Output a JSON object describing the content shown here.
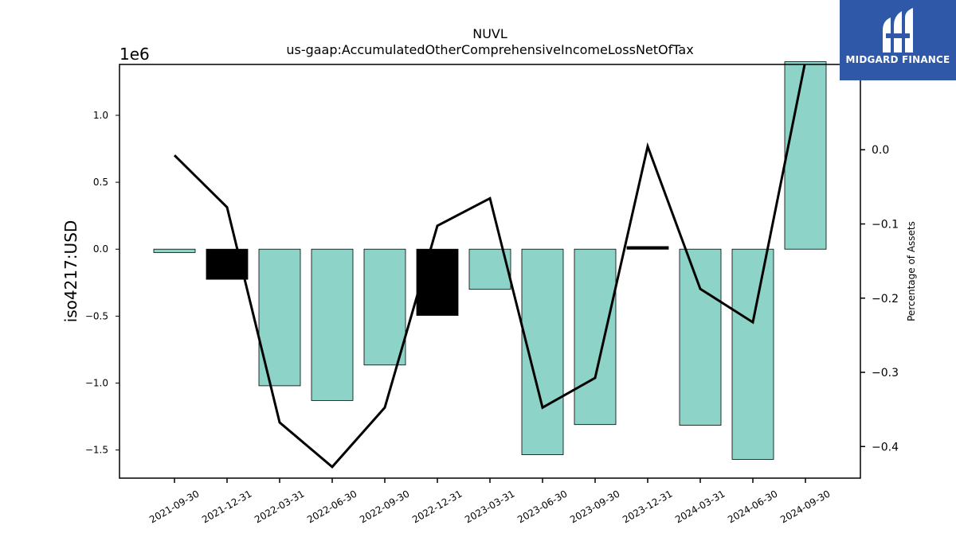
{
  "chart_data": {
    "type": "bar",
    "title": "NUVL",
    "subtitle": "us-gaap:AccumulatedOtherComprehensiveIncomeLossNetOfTax",
    "ylabel": "iso4217:USD",
    "y2label": "Percentage of Assets",
    "y_scale_label": "1e6",
    "categories": [
      "2021-09-30",
      "2021-12-31",
      "2022-03-31",
      "2022-06-30",
      "2022-09-30",
      "2022-12-31",
      "2023-03-31",
      "2023-06-30",
      "2023-09-30",
      "2023-12-31",
      "2024-03-31",
      "2024-06-30",
      "2024-09-30"
    ],
    "series": [
      {
        "kind": "bar",
        "values": [
          -25000,
          -225000,
          -1020000,
          -1130000,
          -865000,
          -495000,
          -300000,
          -1535000,
          -1310000,
          20000,
          -1315000,
          -1570000,
          1400000
        ],
        "colors": [
          "#8dd3c7",
          "#000000",
          "#8dd3c7",
          "#8dd3c7",
          "#8dd3c7",
          "#000000",
          "#8dd3c7",
          "#8dd3c7",
          "#8dd3c7",
          "#000000",
          "#8dd3c7",
          "#8dd3c7",
          "#8dd3c7"
        ]
      },
      {
        "kind": "line",
        "axis": "right",
        "values": [
          -0.0075,
          -0.0775,
          -0.3675,
          -0.4275,
          -0.3475,
          -0.1025,
          -0.0655,
          -0.3475,
          -0.3075,
          0.0045,
          -0.1875,
          -0.2325,
          0.12
        ],
        "color": "#000000"
      }
    ],
    "ylim": [
      -1710000,
      1380000
    ],
    "y_ticks": [
      {
        "value": -1500000,
        "label": "−1.5"
      },
      {
        "value": -1000000,
        "label": "−1.0"
      },
      {
        "value": -500000,
        "label": "−0.5"
      },
      {
        "value": 0,
        "label": "0.0"
      },
      {
        "value": 500000,
        "label": "0.5"
      },
      {
        "value": 1000000,
        "label": "1.0"
      }
    ],
    "y2lim": [
      -0.4426,
      0.115
    ],
    "y2_ticks": [
      {
        "value": 0.0,
        "label": "0.0"
      },
      {
        "value": -0.1,
        "label": "−0.1"
      },
      {
        "value": -0.2,
        "label": "−0.2"
      },
      {
        "value": -0.3,
        "label": "−0.3"
      },
      {
        "value": -0.4,
        "label": "−0.4"
      }
    ],
    "grid": false
  },
  "logo": {
    "text": "MIDGARD FINANCE",
    "color": "#2f58a8"
  }
}
